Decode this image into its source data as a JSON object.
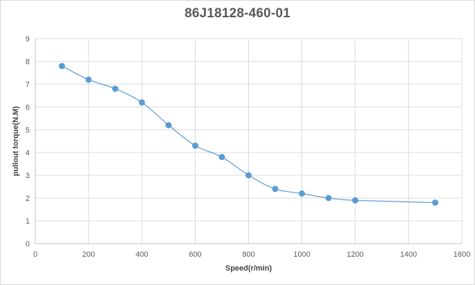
{
  "chart_data": {
    "type": "line",
    "title": "86J18128-460-01",
    "xlabel": "Speed(r/min)",
    "ylabel": "pullout torque(N.M)",
    "xlim": [
      0,
      1600
    ],
    "ylim": [
      0,
      9
    ],
    "x_ticks": [
      0,
      200,
      400,
      600,
      800,
      1000,
      1200,
      1400,
      1600
    ],
    "y_ticks": [
      0,
      1,
      2,
      3,
      4,
      5,
      6,
      7,
      8,
      9
    ],
    "grid": true,
    "smooth": true,
    "series": [
      {
        "color": "#5b9bd5",
        "x": [
          100,
          200,
          300,
          400,
          500,
          600,
          700,
          800,
          900,
          1000,
          1100,
          1200,
          1500
        ],
        "y": [
          7.8,
          7.2,
          6.8,
          6.2,
          5.2,
          4.3,
          3.8,
          3.0,
          2.4,
          2.2,
          2.0,
          1.9,
          1.8
        ]
      }
    ]
  }
}
